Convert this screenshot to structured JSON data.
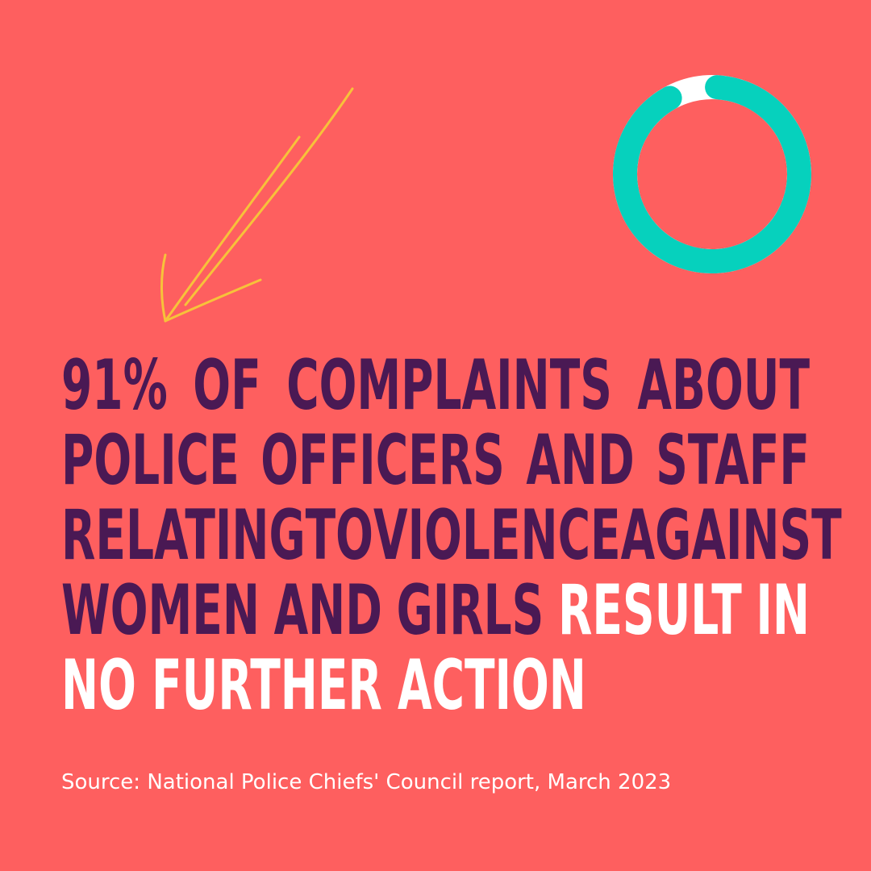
{
  "headline": {
    "lines": [
      [
        "91%",
        "of",
        "complaints",
        "about"
      ],
      [
        "police",
        "officers",
        "and",
        "staff"
      ],
      [
        "relating",
        "to",
        "violence",
        "against"
      ],
      [
        "women",
        "and",
        "girls",
        "result",
        "in"
      ],
      [
        "no",
        "further",
        "action"
      ]
    ],
    "full_text": "91% of complaints about police officers and staff relating to violence against women  and girls result in no further action"
  },
  "stat": {
    "percent": 91
  },
  "source": "Source: National Police Chiefs' Council report, March 2023",
  "colors": {
    "background": "#fe5f5f",
    "headline": "#4a1954",
    "highlight": "#ffffff",
    "donut_value": "#06d1bd",
    "donut_remainder": "#ffffff",
    "arrow": "#f7c23a"
  }
}
